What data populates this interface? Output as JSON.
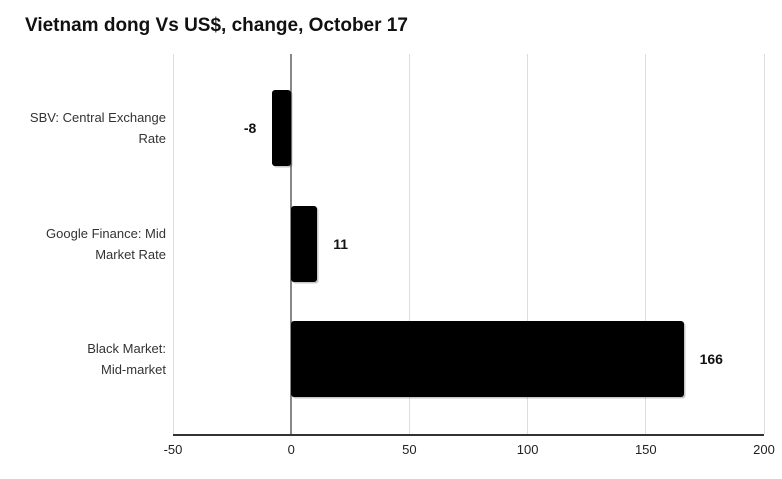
{
  "chart_data": {
    "type": "bar",
    "orientation": "horizontal",
    "title": "Vietnam dong Vs US$, change, October 17",
    "categories": [
      "SBV: Central Exchange Rate",
      "Google Finance: Mid Market Rate",
      "Black Market: Mid-market"
    ],
    "category_lines": [
      [
        "SBV: Central Exchange",
        "Rate"
      ],
      [
        "Google Finance: Mid",
        "Market Rate"
      ],
      [
        "Black Market:",
        "Mid-market"
      ]
    ],
    "values": [
      -8,
      11,
      166
    ],
    "value_labels": [
      "-8",
      "11",
      "166"
    ],
    "xlim": [
      -50,
      200
    ],
    "xticks": [
      -50,
      0,
      50,
      100,
      150,
      200
    ],
    "xtick_labels": [
      "-50",
      "0",
      "50",
      "100",
      "150",
      "200"
    ],
    "grid": true,
    "legend": "none",
    "colors": {
      "bar": "#000000",
      "gridline": "#dddddd",
      "zero_line": "#888888",
      "axis_line": "#333333",
      "category_text": "#333333",
      "tick_text": "#222222",
      "value_text": "#111111",
      "title_text": "#111111",
      "background": "#ffffff"
    }
  }
}
